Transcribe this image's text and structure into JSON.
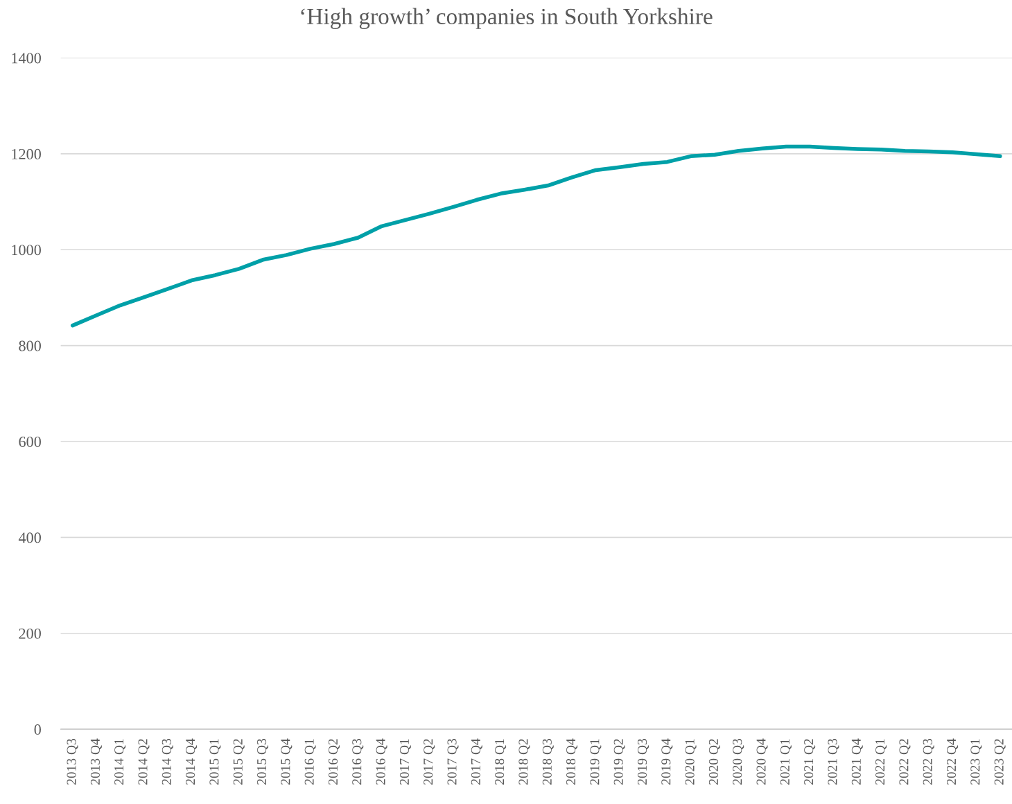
{
  "chart_data": {
    "type": "line",
    "title": "‘High growth’ companies in South Yorkshire",
    "categories": [
      "2013 Q3",
      "2013 Q4",
      "2014 Q1",
      "2014 Q2",
      "2014 Q3",
      "2014 Q4",
      "2015 Q1",
      "2015 Q2",
      "2015 Q3",
      "2015 Q4",
      "2016 Q1",
      "2016 Q2",
      "2016 Q3",
      "2016 Q4",
      "2017 Q1",
      "2017 Q2",
      "2017 Q3",
      "2017 Q4",
      "2018 Q1",
      "2018 Q2",
      "2018 Q3",
      "2018 Q4",
      "2019 Q1",
      "2019 Q2",
      "2019 Q3",
      "2019 Q4",
      "2020 Q1",
      "2020 Q2",
      "2020 Q3",
      "2020 Q4",
      "2021 Q1",
      "2021 Q2",
      "2021 Q3",
      "2021 Q4",
      "2022 Q1",
      "2022 Q2",
      "2022 Q3",
      "2022 Q4",
      "2023 Q1",
      "2023 Q2"
    ],
    "series": [
      {
        "color": "#00a0a8",
        "values": [
          842,
          863,
          884,
          901,
          918,
          936,
          947,
          960,
          979,
          989,
          1002,
          1012,
          1025,
          1049,
          1062,
          1075,
          1089,
          1104,
          1117,
          1125,
          1134,
          1151,
          1166,
          1172,
          1179,
          1183,
          1195,
          1198,
          1206,
          1211,
          1215,
          1215,
          1212,
          1210,
          1209,
          1206,
          1205,
          1203,
          1199,
          1195
        ]
      }
    ],
    "ylim": [
      0,
      1400
    ],
    "yticks": [
      0,
      200,
      400,
      600,
      800,
      1000,
      1200,
      1400
    ],
    "grid": "y",
    "marker": "none",
    "line_style": "solid"
  }
}
